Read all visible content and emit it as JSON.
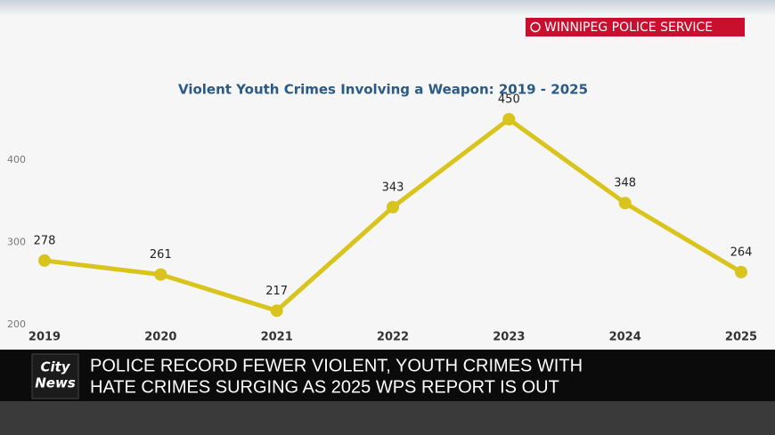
{
  "banner": "WINNIPEG POLICE SERVICE",
  "logo": [
    "City",
    "News"
  ],
  "headline": [
    "POLICE RECORD FEWER VIOLENT, YOUTH CRIMES WITH",
    "HATE CRIMES SURGING AS 2025 WPS REPORT IS OUT"
  ],
  "chart_data": {
    "type": "line",
    "title": "Violent Youth Crimes Involving a Weapon: 2019 - 2025",
    "categories": [
      "2019",
      "2020",
      "2021",
      "2022",
      "2023",
      "2024",
      "2025"
    ],
    "values": [
      278,
      261,
      217,
      343,
      450,
      348,
      264
    ],
    "color": "#d8c41c",
    "ylim": [
      200,
      450
    ],
    "yticks": [
      200,
      300,
      400
    ],
    "grid": false
  }
}
